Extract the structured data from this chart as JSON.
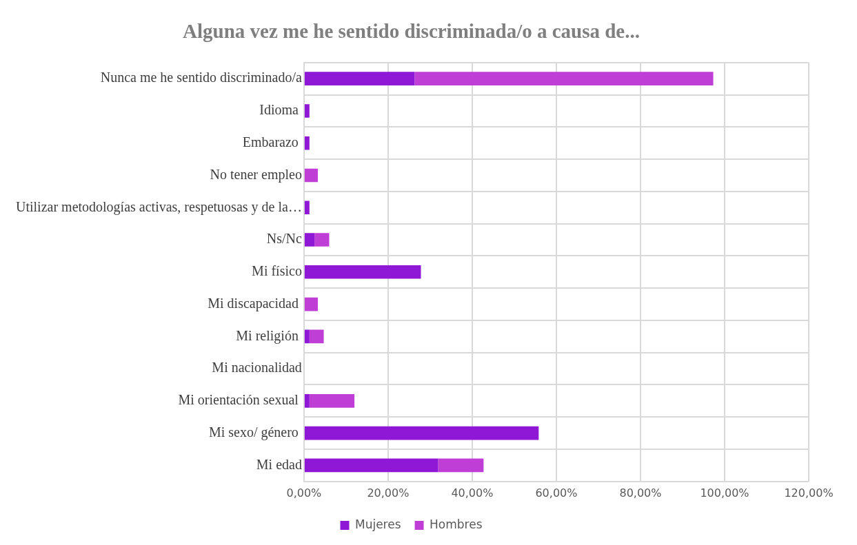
{
  "chart_data": {
    "type": "bar",
    "orientation": "horizontal",
    "stacked": true,
    "title": "Alguna vez me he sentido discriminada/o a causa de...",
    "categories": [
      "Nunca me he sentido discriminado/a",
      "Idioma ",
      "Embarazo ",
      "No tener empleo",
      "Utilizar metodologías activas, respetuosas y de la…",
      "Ns/Nc",
      "Mi físico",
      "Mi discapacidad ",
      "Mi religión ",
      "Mi nacionalidad",
      "Mi orientación sexual ",
      "Mi sexo/ género ",
      "Mi edad"
    ],
    "series": [
      {
        "name": "Mujeres",
        "color": "#8e18d6",
        "values": [
          26.3,
          1.3,
          1.3,
          0,
          1.3,
          2.5,
          27.8,
          0,
          1.3,
          0,
          1.3,
          55.8,
          31.9
        ]
      },
      {
        "name": "Hombres",
        "color": "#bf3fd6",
        "values": [
          71.0,
          0,
          0,
          3.3,
          0,
          3.5,
          0,
          3.3,
          3.4,
          0,
          10.7,
          0,
          10.8
        ]
      }
    ],
    "xlim": [
      0,
      120
    ],
    "xticks": [
      {
        "value": 0,
        "label": "0,00%"
      },
      {
        "value": 20,
        "label": "20,00%"
      },
      {
        "value": 40,
        "label": "40,00%"
      },
      {
        "value": 60,
        "label": "60,00%"
      },
      {
        "value": 80,
        "label": "80,00%"
      },
      {
        "value": 100,
        "label": "100,00%"
      },
      {
        "value": 120,
        "label": "120,00%"
      }
    ],
    "grid": true,
    "legend": "bottom"
  }
}
